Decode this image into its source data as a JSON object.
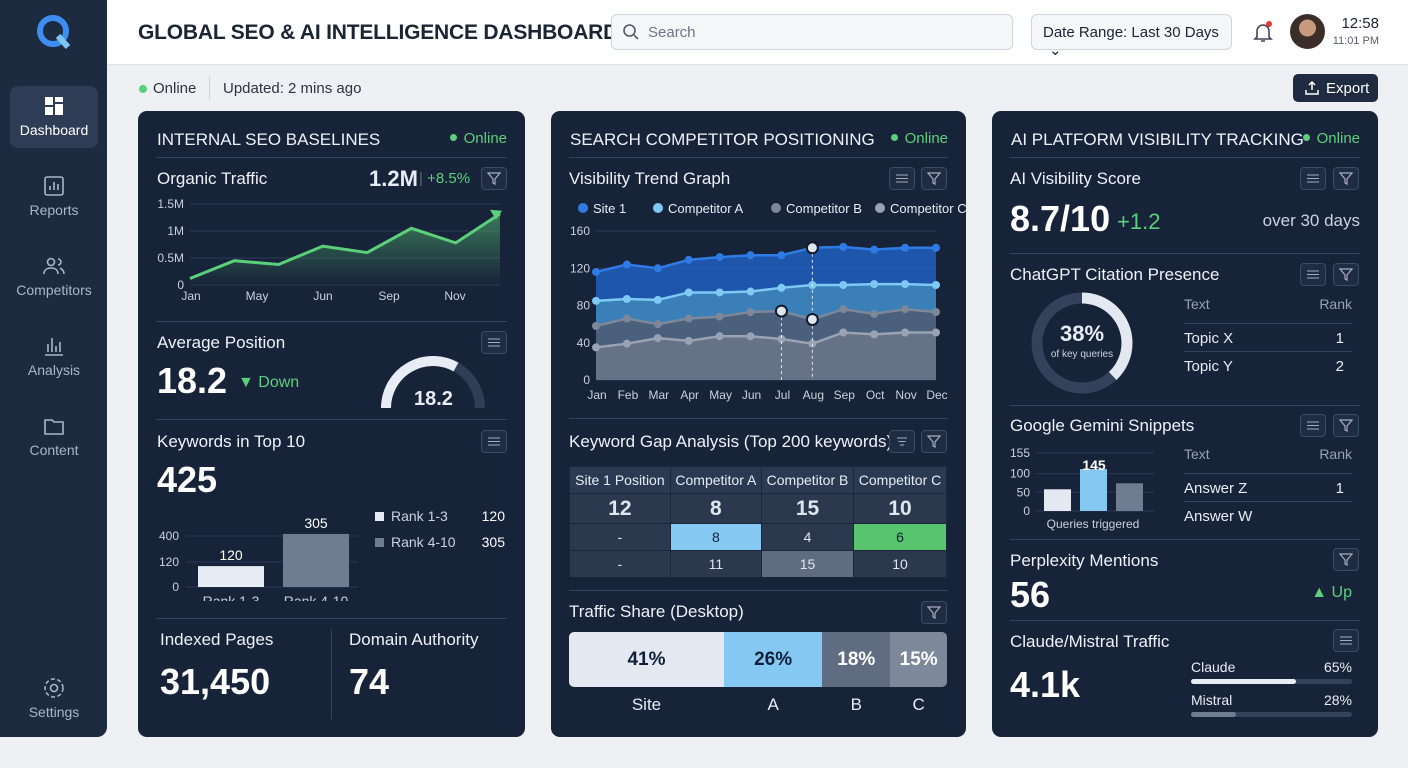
{
  "app": {
    "title": "GLOBAL SEO & AI INTELLIGENCE DASHBOARD",
    "logo": "q-logo-icon"
  },
  "header": {
    "search_placeholder": "Search",
    "date_range": "Date Range: Last 30 Days",
    "time": "12:58",
    "time_sub": "11:01 PM"
  },
  "status": {
    "online": "Online",
    "updated": "Updated: 2 mins ago",
    "export": "Export"
  },
  "sidebar": {
    "items": [
      {
        "label": "Dashboard",
        "icon": "dashboard-icon",
        "active": true
      },
      {
        "label": "Reports",
        "icon": "reports-icon"
      },
      {
        "label": "Competitors",
        "icon": "users-icon"
      },
      {
        "label": "Analysis",
        "icon": "bar-chart-icon"
      },
      {
        "label": "Content",
        "icon": "folder-icon"
      }
    ],
    "settings": "Settings"
  },
  "colors": {
    "online": "#5ccf7a",
    "card": "#172338",
    "site1": "#2f7be6",
    "compA": "#7fcaf5",
    "compB": "#7e8798",
    "compC": "#9aa3b3",
    "highlight_green": "#58c46e"
  },
  "left": {
    "title": "INTERNAL SEO BASELINES",
    "online": "Online",
    "organic": {
      "label": "Organic Traffic",
      "value": "1.2M",
      "change": "+8.5%"
    },
    "avg": {
      "label": "Average Position",
      "value": "18.2",
      "trend": "Down",
      "gauge_value": "18.2"
    },
    "keywords": {
      "label": "Keywords in Top 10",
      "value": "425",
      "legend": [
        {
          "name": "Rank 1-3",
          "value": "120"
        },
        {
          "name": "Rank 4-10",
          "value": "305"
        }
      ]
    },
    "indexed": {
      "label": "Indexed Pages",
      "value": "31,450"
    },
    "da": {
      "label": "Domain Authority",
      "value": "74"
    }
  },
  "middle": {
    "title": "SEARCH COMPETITOR POSITIONING",
    "online": "Online",
    "trend_title": "Visibility Trend Graph",
    "gap": {
      "title": "Keyword Gap Analysis (Top 200 keywords)",
      "headers": [
        "Site 1 Position",
        "Competitor A",
        "Competitor B",
        "Competitor C"
      ],
      "rows": [
        [
          "12",
          "8",
          "15",
          "10"
        ],
        [
          "-",
          "8",
          "4",
          "6"
        ],
        [
          "-",
          "11",
          "15",
          "10"
        ]
      ]
    },
    "share": {
      "title": "Traffic Share (Desktop)",
      "segments": [
        {
          "label": "Site",
          "value": "41%",
          "pct": 41,
          "color": "#e4e9f1"
        },
        {
          "label": "A",
          "value": "26%",
          "pct": 26,
          "color": "#85c9f2"
        },
        {
          "label": "B",
          "value": "18%",
          "pct": 18,
          "color": "#5f6c82"
        },
        {
          "label": "C",
          "value": "15%",
          "pct": 15,
          "color": "#7d889b"
        }
      ]
    }
  },
  "right": {
    "title": "AI PLATFORM VISIBILITY TRACKING",
    "online": "Online",
    "score": {
      "label": "AI Visibility Score",
      "value": "8.7/10",
      "change": "+1.2",
      "period": "over 30 days"
    },
    "chatgpt": {
      "label": "ChatGPT Citation Presence",
      "pct": 38,
      "value": "38%",
      "sub": "of key queries",
      "headers": [
        "Text",
        "Rank"
      ],
      "rows": [
        [
          "Topic X",
          "1"
        ],
        [
          "Topic Y",
          "2"
        ]
      ]
    },
    "gemini": {
      "label": "Google Gemini Snippets",
      "headers": [
        "Text",
        "Rank"
      ],
      "rows": [
        [
          "Answer Z",
          "1"
        ],
        [
          "Answer W",
          ""
        ]
      ]
    },
    "perplexity": {
      "label": "Perplexity Mentions",
      "value": "56",
      "trend": "Up"
    },
    "claude": {
      "label": "Claude/Mistral Traffic",
      "value": "4.1k",
      "bars": [
        {
          "name": "Claude",
          "value": "65%",
          "pct": 65
        },
        {
          "name": "Mistral",
          "value": "28%",
          "pct": 28
        }
      ]
    }
  },
  "chart_data": [
    {
      "type": "area",
      "title": "Organic Traffic",
      "x_ticks": [
        "Jan",
        "May",
        "Jun",
        "Sep",
        "Nov"
      ],
      "y_ticks": [
        "0",
        "0.5M",
        "1M",
        "1.5M"
      ],
      "ylim": [
        0,
        1.5
      ],
      "values": [
        0.12,
        0.45,
        0.38,
        0.72,
        0.6,
        1.05,
        0.78,
        1.32
      ],
      "color": "#5ccf7a"
    },
    {
      "type": "area",
      "title": "Visibility Trend Graph",
      "categories": [
        "Jan",
        "Feb",
        "Mar",
        "Apr",
        "May",
        "Jun",
        "Jul",
        "Aug",
        "Sep",
        "Oct",
        "Nov",
        "Dec"
      ],
      "y_ticks": [
        0,
        40,
        80,
        120,
        160
      ],
      "ylim": [
        0,
        160
      ],
      "legend": "top",
      "series": [
        {
          "name": "Site 1",
          "values": [
            116,
            124,
            120,
            129,
            132,
            134,
            134,
            142,
            143,
            140,
            142,
            142
          ]
        },
        {
          "name": "Competitor A",
          "values": [
            85,
            87,
            86,
            94,
            94,
            95,
            99,
            102,
            102,
            103,
            103,
            102
          ]
        },
        {
          "name": "Competitor B",
          "values": [
            58,
            66,
            60,
            66,
            68,
            73,
            74,
            65,
            76,
            71,
            76,
            73
          ]
        },
        {
          "name": "Competitor C",
          "values": [
            35,
            39,
            45,
            42,
            47,
            47,
            44,
            39,
            51,
            49,
            51,
            51
          ]
        }
      ]
    },
    {
      "type": "bar",
      "title": "Keywords in Top 10",
      "categories": [
        "Rank 1-3",
        "Rank 4-10"
      ],
      "values": [
        120,
        305
      ],
      "y_ticks": [
        "0",
        "120",
        "400"
      ]
    },
    {
      "type": "bar",
      "title": "Google Gemini Snippets",
      "xlabel": "Queries triggered",
      "values": [
        58,
        112,
        74
      ],
      "data_label": "145",
      "y_ticks": [
        "0",
        "50",
        "100",
        "155"
      ],
      "ylim": [
        0,
        155
      ]
    }
  ]
}
